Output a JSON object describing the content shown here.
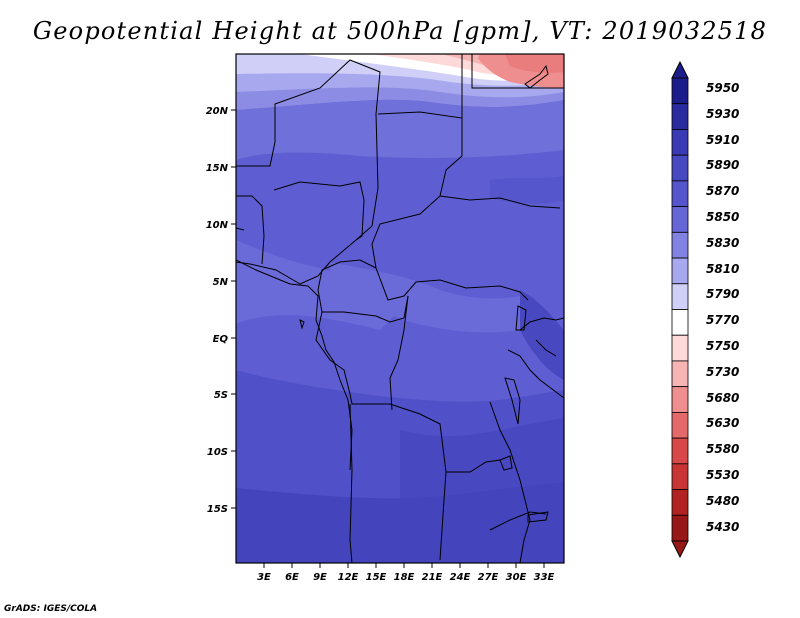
{
  "title": "Geopotential Height at 500hPa [gpm], VT: 2019032518",
  "credit": "GrADS: IGES/COLA",
  "lat_labels": [
    "20N",
    "15N",
    "10N",
    "5N",
    "EQ",
    "5S",
    "10S",
    "15S"
  ],
  "lon_labels": [
    "3E",
    "6E",
    "9E",
    "12E",
    "15E",
    "18E",
    "21E",
    "24E",
    "27E",
    "30E",
    "33E"
  ],
  "colorbar": {
    "levels": [
      "5950",
      "5930",
      "5910",
      "5890",
      "5870",
      "5850",
      "5830",
      "5810",
      "5790",
      "5770",
      "5750",
      "5730",
      "5680",
      "5630",
      "5580",
      "5530",
      "5480",
      "5430"
    ],
    "colors": [
      "#1c1c8a",
      "#2b2ba0",
      "#3a3ab4",
      "#4848c0",
      "#5656cc",
      "#6666d6",
      "#8282e2",
      "#a8a8ee",
      "#cfcff7",
      "#ffffff",
      "#fdd9d9",
      "#f6b4b4",
      "#ee8e8e",
      "#e46a6a",
      "#d94848",
      "#c93434",
      "#b22222",
      "#981818"
    ]
  }
}
